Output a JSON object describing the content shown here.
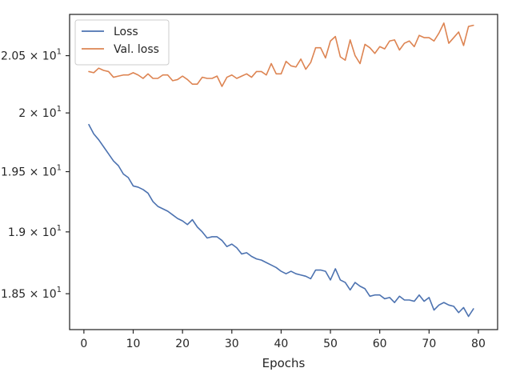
{
  "chart_data": {
    "type": "line",
    "title": "",
    "xlabel": "Epochs",
    "ylabel": "",
    "xlim": [
      -2.9,
      83.9
    ],
    "ylim": [
      18.216,
      20.868
    ],
    "yscale": "log",
    "grid": false,
    "legend_position": "top-left",
    "xticks": [
      0,
      10,
      20,
      30,
      40,
      50,
      60,
      70,
      80
    ],
    "yticks": [
      {
        "value": 18.5,
        "mantissa": "1.85",
        "exp": "1"
      },
      {
        "value": 19.0,
        "mantissa": "1.9",
        "exp": "1"
      },
      {
        "value": 19.5,
        "mantissa": "1.95",
        "exp": "1"
      },
      {
        "value": 20.0,
        "mantissa": "2",
        "exp": "1"
      },
      {
        "value": 20.5,
        "mantissa": "2.05",
        "exp": "1"
      }
    ],
    "x": [
      1,
      2,
      3,
      4,
      5,
      6,
      7,
      8,
      9,
      10,
      11,
      12,
      13,
      14,
      15,
      16,
      17,
      18,
      19,
      20,
      21,
      22,
      23,
      24,
      25,
      26,
      27,
      28,
      29,
      30,
      31,
      32,
      33,
      34,
      35,
      36,
      37,
      38,
      39,
      40,
      41,
      42,
      43,
      44,
      45,
      46,
      47,
      48,
      49,
      50,
      51,
      52,
      53,
      54,
      55,
      56,
      57,
      58,
      59,
      60,
      61,
      62,
      63,
      64,
      65,
      66,
      67,
      68,
      69,
      70,
      71,
      72,
      73,
      74,
      75,
      76,
      77,
      78,
      79
    ],
    "series": [
      {
        "name": "Loss",
        "color": "#4c72b0",
        "values": [
          19.9,
          19.82,
          19.77,
          19.71,
          19.65,
          19.59,
          19.55,
          19.48,
          19.45,
          19.38,
          19.37,
          19.35,
          19.32,
          19.25,
          19.21,
          19.19,
          19.17,
          19.14,
          19.11,
          19.09,
          19.06,
          19.1,
          19.04,
          19.0,
          18.95,
          18.96,
          18.96,
          18.93,
          18.88,
          18.9,
          18.87,
          18.82,
          18.83,
          18.8,
          18.78,
          18.77,
          18.75,
          18.73,
          18.71,
          18.68,
          18.66,
          18.68,
          18.66,
          18.65,
          18.64,
          18.62,
          18.69,
          18.69,
          18.68,
          18.61,
          18.7,
          18.61,
          18.59,
          18.53,
          18.59,
          18.56,
          18.54,
          18.48,
          18.49,
          18.49,
          18.46,
          18.47,
          18.43,
          18.48,
          18.45,
          18.45,
          18.44,
          18.49,
          18.44,
          18.47,
          18.37,
          18.41,
          18.43,
          18.41,
          18.4,
          18.35,
          18.39,
          18.32,
          18.38
        ]
      },
      {
        "name": "Val. loss",
        "color": "#dd8452",
        "values": [
          20.36,
          20.35,
          20.39,
          20.37,
          20.36,
          20.31,
          20.32,
          20.33,
          20.33,
          20.35,
          20.33,
          20.3,
          20.34,
          20.3,
          20.3,
          20.33,
          20.33,
          20.28,
          20.29,
          20.32,
          20.29,
          20.25,
          20.25,
          20.31,
          20.3,
          20.3,
          20.32,
          20.23,
          20.31,
          20.33,
          20.3,
          20.32,
          20.34,
          20.31,
          20.36,
          20.36,
          20.33,
          20.43,
          20.34,
          20.34,
          20.45,
          20.41,
          20.4,
          20.47,
          20.38,
          20.44,
          20.57,
          20.57,
          20.48,
          20.63,
          20.67,
          20.49,
          20.46,
          20.64,
          20.5,
          20.43,
          20.6,
          20.57,
          20.52,
          20.58,
          20.56,
          20.63,
          20.64,
          20.55,
          20.61,
          20.63,
          20.58,
          20.68,
          20.66,
          20.66,
          20.63,
          20.7,
          20.79,
          20.61,
          20.66,
          20.71,
          20.59,
          20.76,
          20.77
        ]
      }
    ]
  }
}
